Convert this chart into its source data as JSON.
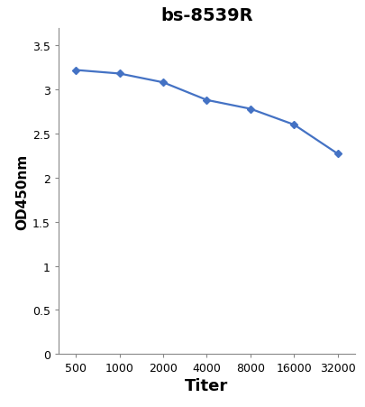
{
  "title": "bs-8539R",
  "xlabel": "Titer",
  "ylabel": "OD450nm",
  "x_values": [
    500,
    1000,
    2000,
    4000,
    8000,
    16000,
    32000
  ],
  "y_values": [
    3.22,
    3.18,
    3.08,
    2.88,
    2.78,
    2.6,
    2.27
  ],
  "x_tick_labels": [
    "500",
    "1000",
    "2000",
    "4000",
    "8000",
    "16000",
    "32000"
  ],
  "ylim": [
    0,
    3.7
  ],
  "yticks": [
    0,
    0.5,
    1.0,
    1.5,
    2.0,
    2.5,
    3.0,
    3.5
  ],
  "ytick_labels": [
    "0",
    "0.5",
    "1",
    "1.5",
    "2",
    "2.5",
    "3",
    "3.5"
  ],
  "line_color": "#4472C4",
  "marker": "D",
  "marker_size": 4,
  "line_width": 1.6,
  "title_fontsize": 14,
  "title_fontweight": "bold",
  "xlabel_fontsize": 13,
  "xlabel_fontweight": "bold",
  "ylabel_fontsize": 11,
  "ylabel_fontweight": "bold",
  "tick_fontsize": 9,
  "background_color": "#ffffff"
}
